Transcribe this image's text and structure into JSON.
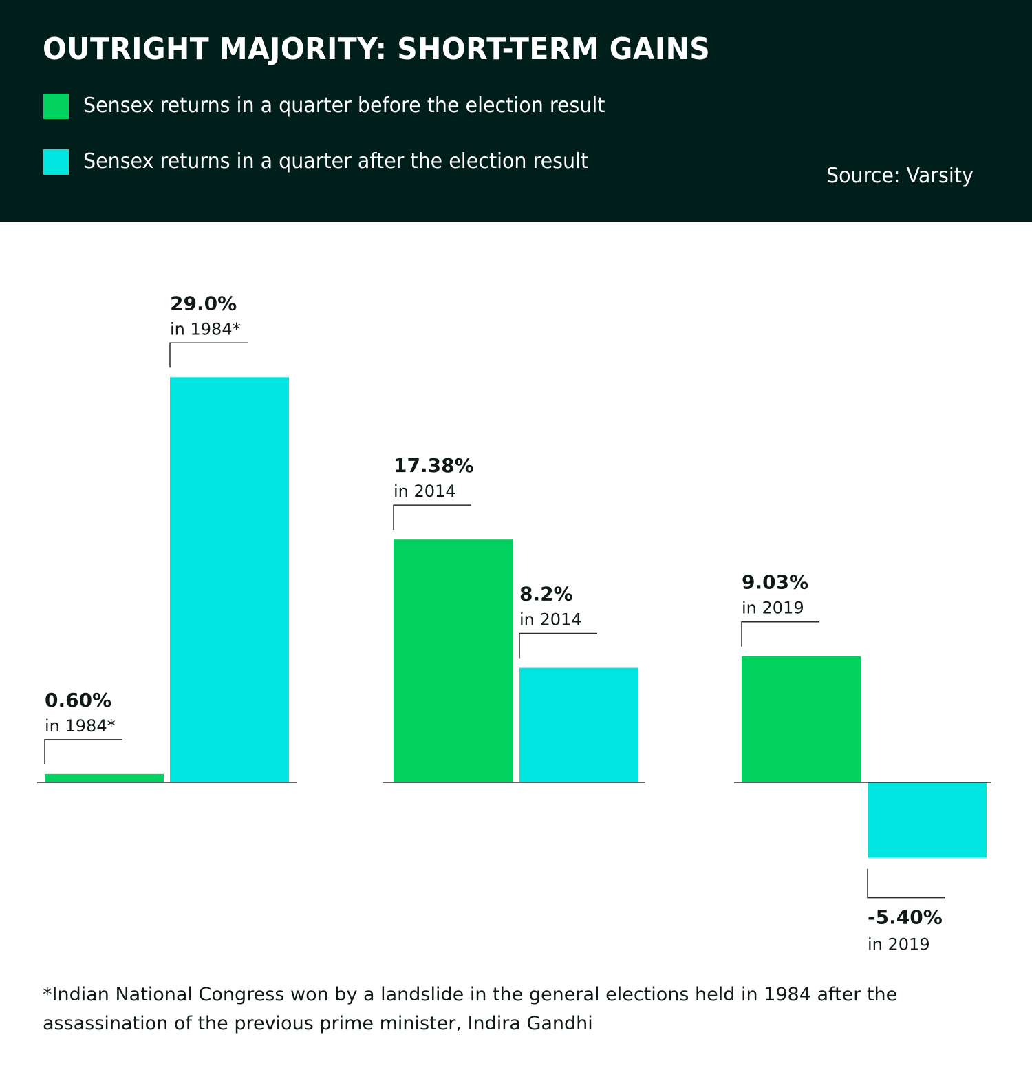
{
  "title": "OUTRIGHT MAJORITY: SHORT-TERM GAINS",
  "legend": [
    {
      "label": "Sensex returns in a quarter before the election result",
      "color": "#00d15f"
    },
    {
      "label": "Sensex returns in a quarter after the election result",
      "color": "#00e5e0"
    }
  ],
  "source": "Source: Varsity",
  "footnote": "*Indian National Congress won by a landslide in the general elections held in 1984 after the assassination of the previous prime minister, Indira Gandhi",
  "chart_data": {
    "type": "bar",
    "series": [
      {
        "name": "Sensex returns in a quarter before the election result",
        "color": "#00d15f"
      },
      {
        "name": "Sensex returns in a quarter after the election result",
        "color": "#00e5e0"
      }
    ],
    "groups": [
      {
        "bars": [
          {
            "series": 0,
            "value": 0.6,
            "label": "0.60%",
            "sublabel": "in 1984*"
          },
          {
            "series": 1,
            "value": 29.0,
            "label": "29.0%",
            "sublabel": "in 1984*"
          }
        ]
      },
      {
        "bars": [
          {
            "series": 0,
            "value": 17.38,
            "label": "17.38%",
            "sublabel": "in 2014"
          },
          {
            "series": 1,
            "value": 8.2,
            "label": "8.2%",
            "sublabel": "in 2014"
          }
        ]
      },
      {
        "bars": [
          {
            "series": 0,
            "value": 9.03,
            "label": "9.03%",
            "sublabel": "in 2019"
          },
          {
            "series": 1,
            "value": -5.4,
            "label": "-5.40%",
            "sublabel": "in 2019"
          }
        ]
      }
    ]
  }
}
